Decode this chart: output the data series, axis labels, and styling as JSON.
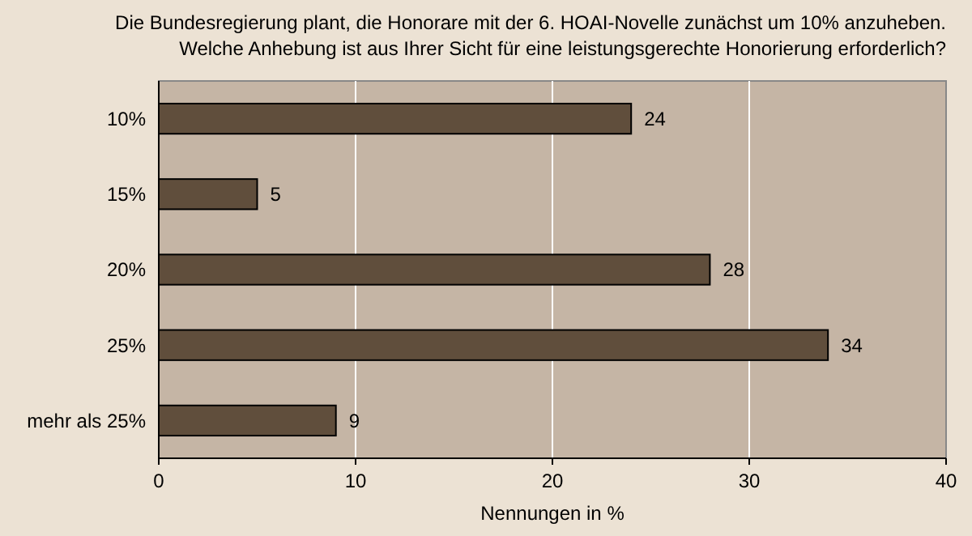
{
  "chart_data": {
    "type": "bar",
    "orientation": "horizontal",
    "title": "Die Bundesregierung plant, die Honorare mit der 6. HOAI-Novelle zunächst um 10% anzuheben.\nWelche Anhebung ist aus Ihrer Sicht für eine leistungsgerechte Honorierung erforderlich?",
    "xlabel": "Nennungen in %",
    "categories": [
      "10%",
      "15%",
      "20%",
      "25%",
      "mehr als 25%"
    ],
    "values": [
      24,
      5,
      28,
      34,
      9
    ],
    "color": "#604e3c",
    "xlim": [
      0,
      40
    ],
    "xticks": [
      0,
      10,
      20,
      30,
      40
    ],
    "grid": "x",
    "data_labels": true
  }
}
